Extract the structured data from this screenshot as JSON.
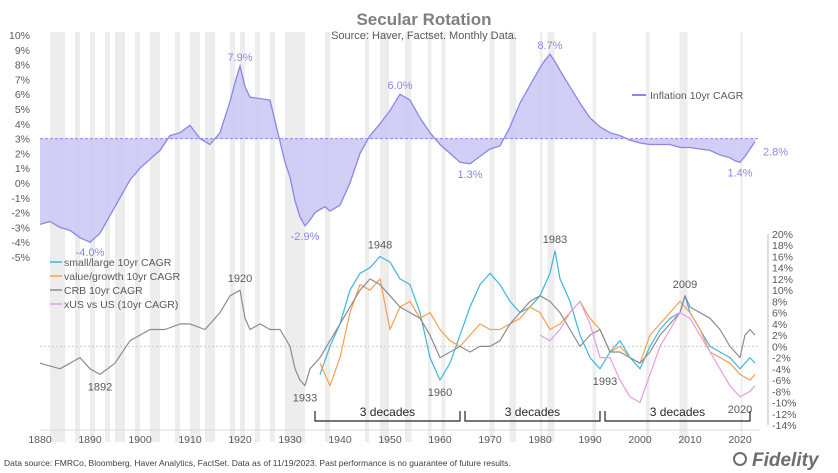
{
  "title": "Secular Rotation",
  "subtitle": "Source: Haver, Factset.  Monthly Data.",
  "footer": "Data source: FMRCo, Bloomberg, Haver Analytics, FactSet. Data as of 11/19/2023. Past performance is no guarantee of future results.",
  "brand": "Fidelity",
  "chart_data": {
    "type": "line",
    "x_axis": {
      "min": 1880,
      "max": 2024,
      "ticks": [
        1880,
        1890,
        1900,
        1910,
        1920,
        1930,
        1940,
        1950,
        1960,
        1970,
        1980,
        1990,
        2000,
        2010,
        2020
      ],
      "tick_labels": [
        "1880",
        "1890",
        "1900",
        "1910",
        "1920",
        "1930",
        "1940",
        "1950",
        "1960",
        "1970",
        "1980",
        "1990",
        "2000",
        "2010",
        "2020"
      ]
    },
    "top_panel": {
      "ylim": [
        -5,
        10
      ],
      "ticks": [
        10,
        9,
        8,
        7,
        6,
        5,
        4,
        3,
        2,
        1,
        0,
        -1,
        -2,
        -3,
        -4,
        -5
      ],
      "tick_labels": [
        "10%",
        "9%",
        "8%",
        "7%",
        "6%",
        "5%",
        "4%",
        "3%",
        "2%",
        "1%",
        "0%",
        "-1%",
        "-2%",
        "-3%",
        "-4%",
        "-5%"
      ],
      "baseline": 3,
      "series": [
        {
          "name": "Inflation 10yr CAGR",
          "type": "area",
          "color": "#8a87e6",
          "x": [
            1880,
            1882,
            1884,
            1886,
            1888,
            1890,
            1892,
            1894,
            1896,
            1898,
            1900,
            1902,
            1904,
            1906,
            1908,
            1910,
            1912,
            1914,
            1916,
            1918,
            1919,
            1920,
            1921,
            1922,
            1924,
            1926,
            1928,
            1929,
            1930,
            1931,
            1932,
            1933,
            1934,
            1935,
            1936,
            1937,
            1938,
            1940,
            1942,
            1944,
            1946,
            1948,
            1950,
            1952,
            1954,
            1956,
            1958,
            1960,
            1962,
            1964,
            1966,
            1968,
            1970,
            1972,
            1974,
            1976,
            1978,
            1980,
            1981,
            1982,
            1983,
            1984,
            1986,
            1988,
            1990,
            1992,
            1994,
            1996,
            1998,
            2000,
            2002,
            2004,
            2006,
            2008,
            2010,
            2012,
            2014,
            2016,
            2018,
            2019,
            2020,
            2021,
            2022,
            2023
          ],
          "y": [
            -2.8,
            -2.6,
            -3.0,
            -3.2,
            -3.7,
            -4.0,
            -3.4,
            -2.2,
            -1.0,
            0.2,
            1.0,
            1.6,
            2.2,
            3.2,
            3.4,
            3.9,
            3.0,
            2.6,
            3.4,
            5.5,
            6.8,
            7.9,
            6.5,
            5.8,
            5.7,
            5.6,
            2.8,
            1.4,
            0.4,
            -1.2,
            -2.3,
            -2.9,
            -2.5,
            -2.0,
            -1.8,
            -1.6,
            -1.9,
            -1.5,
            0.0,
            2.0,
            3.2,
            4.0,
            4.9,
            6.0,
            5.6,
            4.4,
            3.4,
            2.6,
            2.0,
            1.4,
            1.3,
            1.8,
            2.3,
            2.5,
            3.8,
            5.4,
            6.6,
            7.8,
            8.3,
            8.7,
            8.2,
            7.6,
            6.5,
            5.4,
            4.4,
            3.8,
            3.4,
            3.2,
            2.9,
            2.7,
            2.6,
            2.6,
            2.6,
            2.4,
            2.4,
            2.3,
            2.2,
            1.9,
            1.7,
            1.5,
            1.4,
            1.8,
            2.3,
            2.8
          ]
        }
      ],
      "annotations": [
        {
          "label": "7.9%",
          "x": 1920,
          "y": 7.9
        },
        {
          "label": "-4.0%",
          "x": 1890,
          "y": -4.0
        },
        {
          "label": "-2.9%",
          "x": 1933,
          "y": -2.9
        },
        {
          "label": "6.0%",
          "x": 1952,
          "y": 6.0
        },
        {
          "label": "1.3%",
          "x": 1966,
          "y": 1.3
        },
        {
          "label": "8.7%",
          "x": 1982,
          "y": 8.7
        },
        {
          "label": "1.4%",
          "x": 2020,
          "y": 1.4
        },
        {
          "label": "2.8%",
          "x": 2023,
          "y": 2.8
        }
      ]
    },
    "bottom_panel": {
      "ylim": [
        -14,
        20
      ],
      "ticks": [
        20,
        18,
        16,
        14,
        12,
        10,
        8,
        6,
        4,
        2,
        0,
        -2,
        -4,
        -6,
        -8,
        -10,
        -12,
        -14
      ],
      "tick_labels": [
        "20%",
        "18%",
        "16%",
        "14%",
        "12%",
        "10%",
        "8%",
        "6%",
        "4%",
        "2%",
        "0%",
        "-2%",
        "-4%",
        "-6%",
        "-8%",
        "-10%",
        "-12%",
        "-14%"
      ],
      "series": [
        {
          "name": "small/large 10yr CAGR",
          "color": "#3fb6dc",
          "x": [
            1936,
            1938,
            1940,
            1942,
            1944,
            1946,
            1948,
            1950,
            1952,
            1954,
            1956,
            1958,
            1960,
            1962,
            1964,
            1966,
            1968,
            1970,
            1972,
            1974,
            1976,
            1978,
            1980,
            1982,
            1983,
            1984,
            1986,
            1988,
            1990,
            1992,
            1994,
            1996,
            1998,
            2000,
            2002,
            2004,
            2006,
            2008,
            2009,
            2010,
            2012,
            2014,
            2016,
            2018,
            2020,
            2022,
            2023
          ],
          "y": [
            -5,
            0,
            4,
            10,
            13,
            14,
            16,
            15,
            12,
            11,
            6,
            -2,
            -6,
            -3,
            2,
            7,
            11,
            13,
            11,
            8,
            6,
            7,
            9,
            13,
            17,
            12,
            8,
            2,
            -2,
            -4,
            -1,
            1,
            -2,
            -4,
            0,
            3,
            5,
            6,
            9,
            6,
            3,
            0,
            -1,
            -2,
            -4,
            -2,
            -3
          ]
        },
        {
          "name": "value/growth 10yr CAGR",
          "color": "#f5a04a",
          "x": [
            1936,
            1938,
            1940,
            1942,
            1944,
            1946,
            1948,
            1950,
            1952,
            1954,
            1956,
            1958,
            1960,
            1962,
            1964,
            1966,
            1968,
            1970,
            1972,
            1974,
            1976,
            1978,
            1980,
            1982,
            1984,
            1986,
            1988,
            1990,
            1992,
            1994,
            1996,
            1998,
            2000,
            2002,
            2004,
            2006,
            2008,
            2010,
            2012,
            2014,
            2016,
            2018,
            2020,
            2022,
            2023
          ],
          "y": [
            -3,
            -7,
            -2,
            6,
            11,
            10,
            12,
            3,
            7,
            8,
            5,
            6,
            3,
            1,
            0,
            2,
            4,
            3,
            3,
            4,
            5,
            7,
            6,
            3,
            4,
            6,
            8,
            5,
            3,
            -1,
            0,
            -2,
            -3,
            2,
            4,
            6,
            8,
            6,
            3,
            -1,
            -2,
            -3,
            -5,
            -6,
            -5
          ]
        },
        {
          "name": "CRB 10yr CAGR",
          "color": "#8c8c8c",
          "x": [
            1880,
            1884,
            1888,
            1890,
            1892,
            1895,
            1898,
            1900,
            1902,
            1905,
            1908,
            1910,
            1913,
            1916,
            1918,
            1920,
            1921,
            1922,
            1924,
            1926,
            1928,
            1930,
            1931,
            1932,
            1933,
            1934,
            1936,
            1938,
            1940,
            1942,
            1944,
            1946,
            1948,
            1950,
            1952,
            1954,
            1956,
            1958,
            1960,
            1962,
            1964,
            1966,
            1968,
            1970,
            1972,
            1974,
            1976,
            1978,
            1980,
            1982,
            1984,
            1986,
            1988,
            1990,
            1992,
            1994,
            1996,
            1998,
            2000,
            2002,
            2004,
            2006,
            2008,
            2009,
            2010,
            2012,
            2014,
            2016,
            2018,
            2020,
            2021,
            2022,
            2023
          ],
          "y": [
            -3,
            -4,
            -2,
            -4,
            -5,
            -3,
            1,
            2,
            3,
            3,
            4,
            4,
            3,
            6,
            9,
            10,
            5,
            3,
            4,
            3,
            3,
            0,
            -4,
            -6,
            -7,
            -4,
            -2,
            1,
            4,
            7,
            10,
            12,
            11,
            9,
            7,
            6,
            5,
            2,
            -2,
            -1,
            0,
            -1,
            0,
            0,
            1,
            4,
            6,
            8,
            9,
            8,
            6,
            3,
            0,
            2,
            3,
            -1,
            -1,
            -2,
            -3,
            -1,
            2,
            4,
            6,
            9,
            7,
            6,
            5,
            3,
            0,
            -2,
            2,
            3,
            2
          ]
        },
        {
          "name": "xUS vs US (10yr CAGR)",
          "color": "#e79ce5",
          "x": [
            1980,
            1982,
            1984,
            1986,
            1988,
            1990,
            1992,
            1994,
            1996,
            1998,
            2000,
            2002,
            2004,
            2006,
            2008,
            2010,
            2012,
            2014,
            2016,
            2018,
            2020,
            2022,
            2023
          ],
          "y": [
            2,
            1,
            3,
            6,
            8,
            4,
            -2,
            -2,
            -6,
            -9,
            -10,
            -5,
            0,
            3,
            6,
            5,
            2,
            -1,
            -4,
            -7,
            -9,
            -8,
            -7
          ]
        }
      ],
      "annotations": [
        {
          "label": "1892",
          "x": 1892,
          "y": -5
        },
        {
          "label": "1920",
          "x": 1920,
          "y": 10
        },
        {
          "label": "1933",
          "x": 1933,
          "y": -7
        },
        {
          "label": "1948",
          "x": 1948,
          "y": 16
        },
        {
          "label": "1960",
          "x": 1960,
          "y": -6
        },
        {
          "label": "1983",
          "x": 1983,
          "y": 17
        },
        {
          "label": "1993",
          "x": 1993,
          "y": -4
        },
        {
          "label": "2009",
          "x": 2009,
          "y": 9
        },
        {
          "label": "2020",
          "x": 2020,
          "y": -9
        }
      ],
      "decades": [
        {
          "label": "3 decades",
          "from": 1935,
          "to": 1964
        },
        {
          "label": "3 decades",
          "from": 1965,
          "to": 1992
        },
        {
          "label": "3 decades",
          "from": 1993,
          "to": 2022
        }
      ]
    },
    "recession_bands": [
      [
        1882,
        1885
      ],
      [
        1887,
        1888
      ],
      [
        1890,
        1891
      ],
      [
        1893,
        1894
      ],
      [
        1895,
        1897
      ],
      [
        1899,
        1900
      ],
      [
        1902,
        1904
      ],
      [
        1907,
        1908
      ],
      [
        1910,
        1912
      ],
      [
        1913,
        1915
      ],
      [
        1918,
        1919
      ],
      [
        1920,
        1921
      ],
      [
        1923,
        1924
      ],
      [
        1926,
        1927
      ],
      [
        1929,
        1933
      ],
      [
        1937,
        1938
      ],
      [
        1945,
        1945.8
      ],
      [
        1948,
        1949.8
      ],
      [
        1953,
        1954.3
      ],
      [
        1957.6,
        1958.3
      ],
      [
        1960.3,
        1961.1
      ],
      [
        1969.9,
        1970.9
      ],
      [
        1973.9,
        1975.2
      ],
      [
        1980,
        1980.5
      ],
      [
        1981.5,
        1982.9
      ],
      [
        1990.5,
        1991.2
      ],
      [
        2001.2,
        2001.9
      ],
      [
        2007.9,
        2009.5
      ],
      [
        2020.1,
        2020.4
      ]
    ]
  }
}
